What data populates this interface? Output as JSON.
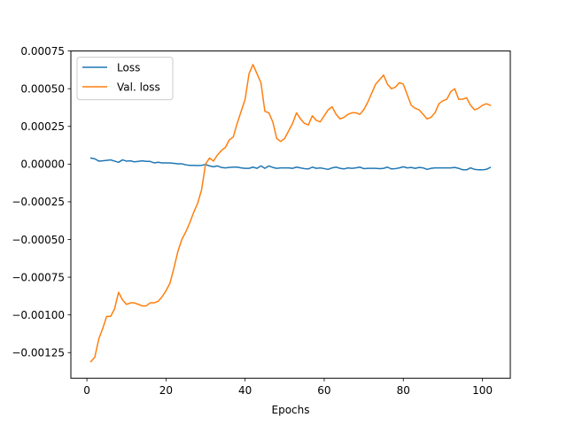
{
  "chart_data": {
    "type": "line",
    "title": "",
    "xlabel": "Epochs",
    "ylabel": "",
    "xlim": [
      -4.05,
      107.05
    ],
    "ylim": [
      -0.00142,
      0.00075
    ],
    "xticks": [
      0,
      20,
      40,
      60,
      80,
      100
    ],
    "xtick_labels": [
      "0",
      "20",
      "40",
      "60",
      "80",
      "100"
    ],
    "yticks": [
      -0.00125,
      -0.001,
      -0.00075,
      -0.0005,
      -0.00025,
      0,
      0.00025,
      0.0005,
      0.00075
    ],
    "ytick_labels": [
      "−0.00125",
      "−0.00100",
      "−0.00075",
      "−0.00050",
      "−0.00025",
      "0.00000",
      "0.00025",
      "0.00050",
      "0.00075"
    ],
    "grid": false,
    "legend": "upper left",
    "series": [
      {
        "name": "Loss",
        "color": "#1f77b4",
        "x": [
          1,
          2,
          3,
          4,
          5,
          6,
          7,
          8,
          9,
          10,
          11,
          12,
          13,
          14,
          15,
          16,
          17,
          18,
          19,
          20,
          21,
          22,
          23,
          24,
          25,
          26,
          27,
          28,
          29,
          30,
          31,
          32,
          33,
          34,
          35,
          36,
          37,
          38,
          39,
          40,
          41,
          42,
          43,
          44,
          45,
          46,
          47,
          48,
          49,
          50,
          51,
          52,
          53,
          54,
          55,
          56,
          57,
          58,
          59,
          60,
          61,
          62,
          63,
          64,
          65,
          66,
          67,
          68,
          69,
          70,
          71,
          72,
          73,
          74,
          75,
          76,
          77,
          78,
          79,
          80,
          81,
          82,
          83,
          84,
          85,
          86,
          87,
          88,
          89,
          90,
          91,
          92,
          93,
          94,
          95,
          96,
          97,
          98,
          99,
          100,
          101,
          102
        ],
        "y": [
          4e-05,
          3.5e-05,
          2e-05,
          2.2e-05,
          2.5e-05,
          2.8e-05,
          2e-05,
          1.2e-05,
          2.8e-05,
          2e-05,
          2.2e-05,
          1.5e-05,
          1.8e-05,
          2.2e-05,
          1.8e-05,
          1.8e-05,
          8e-06,
          1.2e-05,
          8e-06,
          8e-06,
          8e-06,
          5e-06,
          2e-06,
          2e-06,
          -5e-06,
          -8e-06,
          -8e-06,
          -1e-05,
          -8e-06,
          -3e-06,
          -1.2e-05,
          -1.8e-05,
          -1.2e-05,
          -2.2e-05,
          -2.5e-05,
          -2.2e-05,
          -2e-05,
          -2e-05,
          -2.5e-05,
          -2.8e-05,
          -2.8e-05,
          -2e-05,
          -2.8e-05,
          -1.2e-05,
          -2.8e-05,
          -1.2e-05,
          -2.2e-05,
          -2.8e-05,
          -2.5e-05,
          -2.5e-05,
          -2.5e-05,
          -2.8e-05,
          -2e-05,
          -2.5e-05,
          -3e-05,
          -3.2e-05,
          -2e-05,
          -2.8e-05,
          -2.5e-05,
          -3e-05,
          -3.5e-05,
          -2.5e-05,
          -2e-05,
          -2.8e-05,
          -3.2e-05,
          -2.5e-05,
          -2.8e-05,
          -2.5e-05,
          -2e-05,
          -3e-05,
          -2.8e-05,
          -2.8e-05,
          -2.8e-05,
          -3e-05,
          -2.8e-05,
          -2e-05,
          -3.2e-05,
          -3e-05,
          -2.5e-05,
          -1.8e-05,
          -2.5e-05,
          -2.2e-05,
          -2.8e-05,
          -2.2e-05,
          -2.5e-05,
          -3.5e-05,
          -2.8e-05,
          -2.5e-05,
          -2.5e-05,
          -2.5e-05,
          -2.5e-05,
          -2.5e-05,
          -2.2e-05,
          -2.8e-05,
          -3.8e-05,
          -3.8e-05,
          -2.5e-05,
          -3.5e-05,
          -3.8e-05,
          -3.8e-05,
          -3.5e-05,
          -2.2e-05
        ]
      },
      {
        "name": "Val. loss",
        "color": "#ff7f0e",
        "x": [
          1,
          2,
          3,
          4,
          5,
          6,
          7,
          8,
          9,
          10,
          11,
          12,
          13,
          14,
          15,
          16,
          17,
          18,
          19,
          20,
          21,
          22,
          23,
          24,
          25,
          26,
          27,
          28,
          29,
          30,
          31,
          32,
          33,
          34,
          35,
          36,
          37,
          38,
          39,
          40,
          41,
          42,
          43,
          44,
          45,
          46,
          47,
          48,
          49,
          50,
          51,
          52,
          53,
          54,
          55,
          56,
          57,
          58,
          59,
          60,
          61,
          62,
          63,
          64,
          65,
          66,
          67,
          68,
          69,
          70,
          71,
          72,
          73,
          74,
          75,
          76,
          77,
          78,
          79,
          80,
          81,
          82,
          83,
          84,
          85,
          86,
          87,
          88,
          89,
          90,
          91,
          92,
          93,
          94,
          95,
          96,
          97,
          98,
          99,
          100,
          101,
          102
        ],
        "y": [
          -0.00131,
          -0.00128,
          -0.00116,
          -0.00109,
          -0.00101,
          -0.00101,
          -0.00096,
          -0.00085,
          -0.0009,
          -0.00093,
          -0.00092,
          -0.00092,
          -0.00093,
          -0.00094,
          -0.00094,
          -0.00092,
          -0.00092,
          -0.00091,
          -0.00088,
          -0.00084,
          -0.00079,
          -0.00069,
          -0.00058,
          -0.0005,
          -0.00045,
          -0.00039,
          -0.00032,
          -0.00026,
          -0.00017,
          0.0,
          4e-05,
          2e-05,
          6e-05,
          9e-05,
          0.00011,
          0.00016,
          0.00018,
          0.00027,
          0.00035,
          0.00043,
          0.0006,
          0.00066,
          0.0006,
          0.00054,
          0.00035,
          0.00034,
          0.00028,
          0.00017,
          0.00015,
          0.00017,
          0.00022,
          0.00027,
          0.00034,
          0.0003,
          0.00027,
          0.00026,
          0.00032,
          0.00029,
          0.00028,
          0.00032,
          0.00036,
          0.00038,
          0.00033,
          0.0003,
          0.00031,
          0.00033,
          0.00034,
          0.00034,
          0.00033,
          0.00036,
          0.00041,
          0.00047,
          0.00053,
          0.00056,
          0.00059,
          0.00053,
          0.0005,
          0.00051,
          0.00054,
          0.00053,
          0.00046,
          0.00039,
          0.00037,
          0.00036,
          0.00033,
          0.0003,
          0.00031,
          0.00034,
          0.0004,
          0.00042,
          0.00043,
          0.00048,
          0.0005,
          0.00043,
          0.00043,
          0.00044,
          0.00039,
          0.00036,
          0.00037,
          0.00039,
          0.0004,
          0.00039
        ]
      }
    ]
  }
}
